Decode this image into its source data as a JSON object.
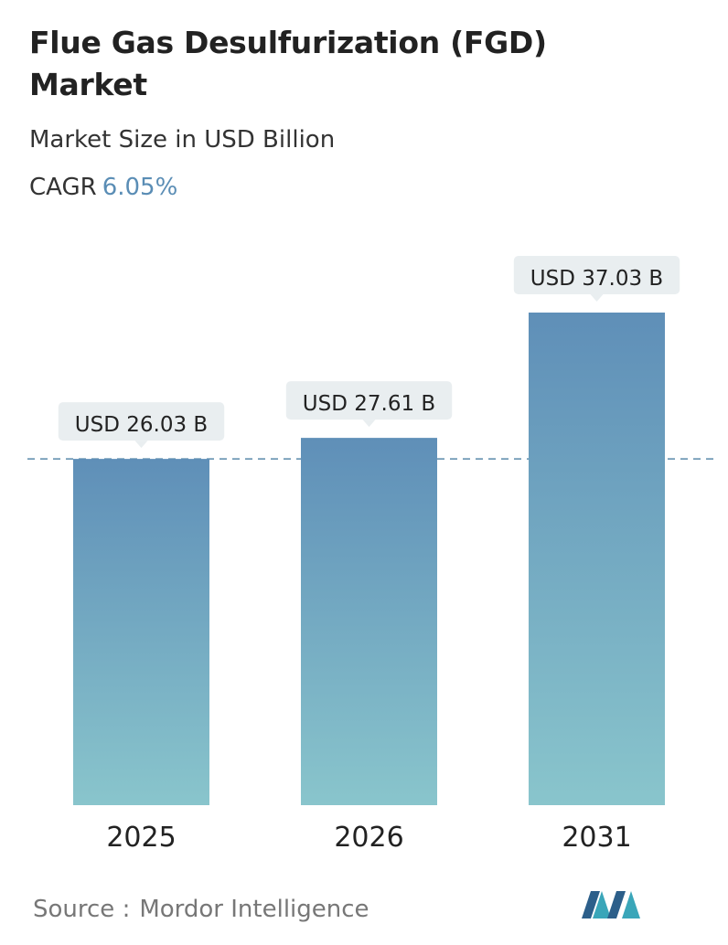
{
  "chart_data": {
    "type": "bar",
    "title": "Flue Gas Desulfurization (FGD) Market",
    "subtitle": "Market Size in USD Billion",
    "cagr": {
      "label": "CAGR",
      "value": "6.05%"
    },
    "categories": [
      "2025",
      "2026",
      "2031"
    ],
    "values": [
      26.03,
      27.61,
      37.03
    ],
    "value_labels": [
      "USD 26.03 B",
      "USD 27.61 B",
      "USD 37.03 B"
    ],
    "colors": {
      "top": "#5f8fb8",
      "bottom": "#89c5cc"
    },
    "source": {
      "label": "Source :",
      "name": "Mordor Intelligence"
    }
  }
}
